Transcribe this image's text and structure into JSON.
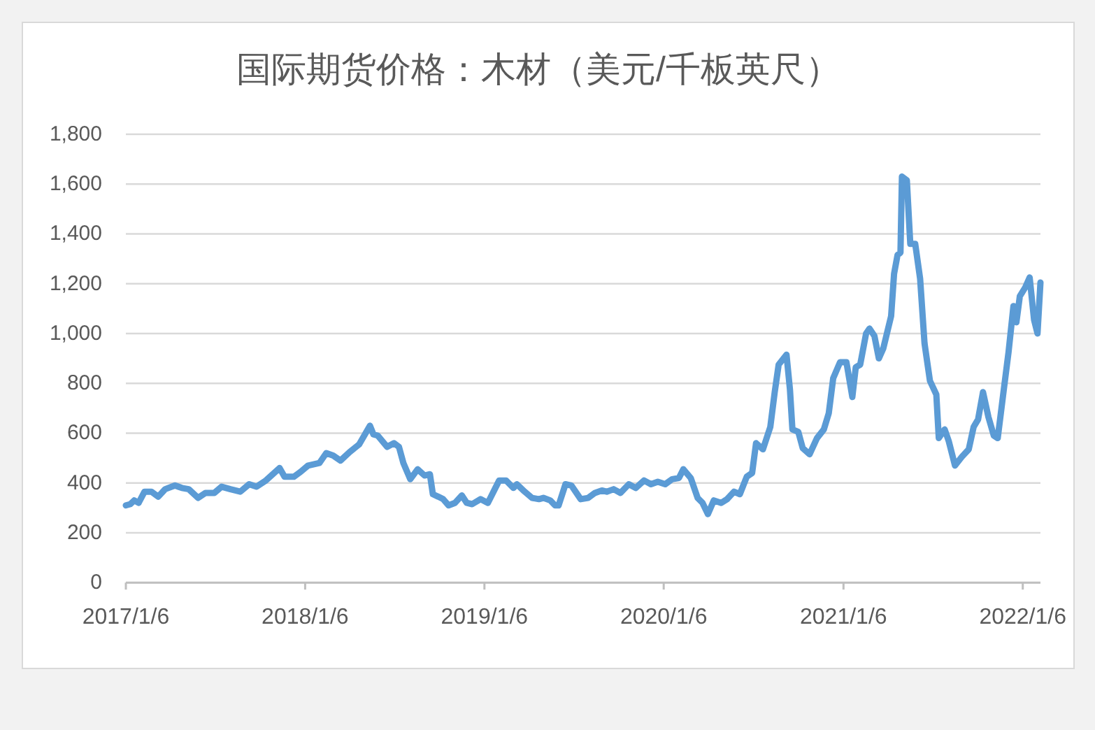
{
  "chart_data": {
    "type": "line",
    "title": "国际期货价格：木材（美元/千板英尺）",
    "x": [
      "2017-01-06",
      "2017-01-15",
      "2017-01-23",
      "2017-02-01",
      "2017-02-13",
      "2017-02-27",
      "2017-03-13",
      "2017-03-27",
      "2017-04-16",
      "2017-04-30",
      "2017-05-14",
      "2017-06-02",
      "2017-06-17",
      "2017-07-05",
      "2017-07-20",
      "2017-08-07",
      "2017-08-27",
      "2017-09-14",
      "2017-09-29",
      "2017-10-18",
      "2017-11-15",
      "2017-11-25",
      "2017-12-14",
      "2017-12-28",
      "2018-01-12",
      "2018-02-04",
      "2018-02-18",
      "2018-03-04",
      "2018-03-19",
      "2018-04-07",
      "2018-04-26",
      "2018-05-18",
      "2018-05-25",
      "2018-06-03",
      "2018-06-22",
      "2018-07-06",
      "2018-07-16",
      "2018-07-25",
      "2018-08-08",
      "2018-08-23",
      "2018-09-06",
      "2018-09-17",
      "2018-09-23",
      "2018-10-04",
      "2018-10-14",
      "2018-10-25",
      "2018-11-07",
      "2018-11-21",
      "2018-12-01",
      "2018-12-12",
      "2018-12-29",
      "2019-01-13",
      "2019-01-27",
      "2019-02-05",
      "2019-02-19",
      "2019-03-06",
      "2019-03-13",
      "2019-03-29",
      "2019-04-13",
      "2019-04-27",
      "2019-05-06",
      "2019-05-20",
      "2019-05-30",
      "2019-06-06",
      "2019-06-20",
      "2019-07-02",
      "2019-07-21",
      "2019-08-05",
      "2019-08-19",
      "2019-09-02",
      "2019-09-12",
      "2019-09-26",
      "2019-10-10",
      "2019-10-27",
      "2019-11-10",
      "2019-11-27",
      "2019-12-11",
      "2019-12-25",
      "2020-01-09",
      "2020-01-23",
      "2020-02-06",
      "2020-02-15",
      "2020-03-01",
      "2020-03-15",
      "2020-03-25",
      "2020-04-05",
      "2020-04-17",
      "2020-05-02",
      "2020-05-14",
      "2020-05-28",
      "2020-06-09",
      "2020-06-23",
      "2020-07-04",
      "2020-07-12",
      "2020-07-26",
      "2020-08-10",
      "2020-08-19",
      "2020-08-27",
      "2020-09-12",
      "2020-09-19",
      "2020-09-24",
      "2020-10-06",
      "2020-10-15",
      "2020-10-29",
      "2020-11-13",
      "2020-11-27",
      "2020-12-07",
      "2020-12-16",
      "2020-12-30",
      "2021-01-12",
      "2021-01-24",
      "2021-01-31",
      "2021-02-09",
      "2021-02-21",
      "2021-02-28",
      "2021-03-10",
      "2021-03-19",
      "2021-03-28",
      "2021-04-13",
      "2021-04-19",
      "2021-04-26",
      "2021-05-02",
      "2021-05-05",
      "2021-05-15",
      "2021-05-22",
      "2021-06-01",
      "2021-06-11",
      "2021-06-20",
      "2021-07-01",
      "2021-07-14",
      "2021-07-19",
      "2021-07-31",
      "2021-08-08",
      "2021-08-21",
      "2021-09-04",
      "2021-09-18",
      "2021-09-28",
      "2021-10-07",
      "2021-10-17",
      "2021-10-28",
      "2021-11-08",
      "2021-11-16",
      "2021-11-29",
      "2021-12-08",
      "2021-12-18",
      "2021-12-24",
      "2021-12-31",
      "2022-01-11",
      "2022-01-20",
      "2022-01-29",
      "2022-02-05",
      "2022-02-11"
    ],
    "series": [
      {
        "color": "#5b9bd5",
        "values": [
          310,
          315,
          330,
          320,
          365,
          365,
          345,
          375,
          390,
          380,
          375,
          340,
          360,
          360,
          385,
          375,
          365,
          395,
          385,
          410,
          460,
          425,
          425,
          445,
          470,
          480,
          520,
          510,
          490,
          525,
          555,
          630,
          595,
          590,
          545,
          560,
          545,
          480,
          415,
          455,
          430,
          435,
          355,
          345,
          335,
          310,
          320,
          350,
          320,
          315,
          335,
          320,
          375,
          410,
          410,
          380,
          395,
          365,
          340,
          335,
          340,
          330,
          310,
          310,
          395,
          390,
          335,
          340,
          360,
          370,
          365,
          375,
          360,
          395,
          380,
          410,
          395,
          405,
          395,
          415,
          420,
          455,
          420,
          340,
          320,
          275,
          330,
          320,
          335,
          365,
          355,
          425,
          440,
          560,
          535,
          625,
          765,
          875,
          915,
          775,
          615,
          605,
          540,
          515,
          580,
          615,
          680,
          820,
          885,
          885,
          745,
          865,
          875,
          1000,
          1020,
          990,
          900,
          940,
          1070,
          1240,
          1315,
          1325,
          1630,
          1615,
          1360,
          1360,
          1220,
          960,
          810,
          755,
          580,
          615,
          570,
          470,
          505,
          535,
          625,
          655,
          765,
          665,
          590,
          580,
          785,
          925,
          1110,
          1045,
          1150,
          1185,
          1225,
          1055,
          1000,
          1205
        ]
      }
    ],
    "line_style": "solid",
    "xlim": [
      "2017-01-06",
      "2022-02-11"
    ],
    "xticks": [
      {
        "value": "2017-01-06",
        "label": "2017/1/6"
      },
      {
        "value": "2018-01-06",
        "label": "2018/1/6"
      },
      {
        "value": "2019-01-06",
        "label": "2019/1/6"
      },
      {
        "value": "2020-01-06",
        "label": "2020/1/6"
      },
      {
        "value": "2021-01-06",
        "label": "2021/1/6"
      },
      {
        "value": "2022-01-06",
        "label": "2022/1/6"
      }
    ],
    "ylim": [
      0,
      1800
    ],
    "yticks": [
      0,
      200,
      400,
      600,
      800,
      {
        "value": 1000,
        "label": "1,000"
      },
      {
        "value": 1200,
        "label": "1,200"
      },
      {
        "value": 1400,
        "label": "1,400"
      },
      {
        "value": 1600,
        "label": "1,600"
      },
      {
        "value": 1800,
        "label": "1,800"
      }
    ],
    "grid": "y"
  }
}
